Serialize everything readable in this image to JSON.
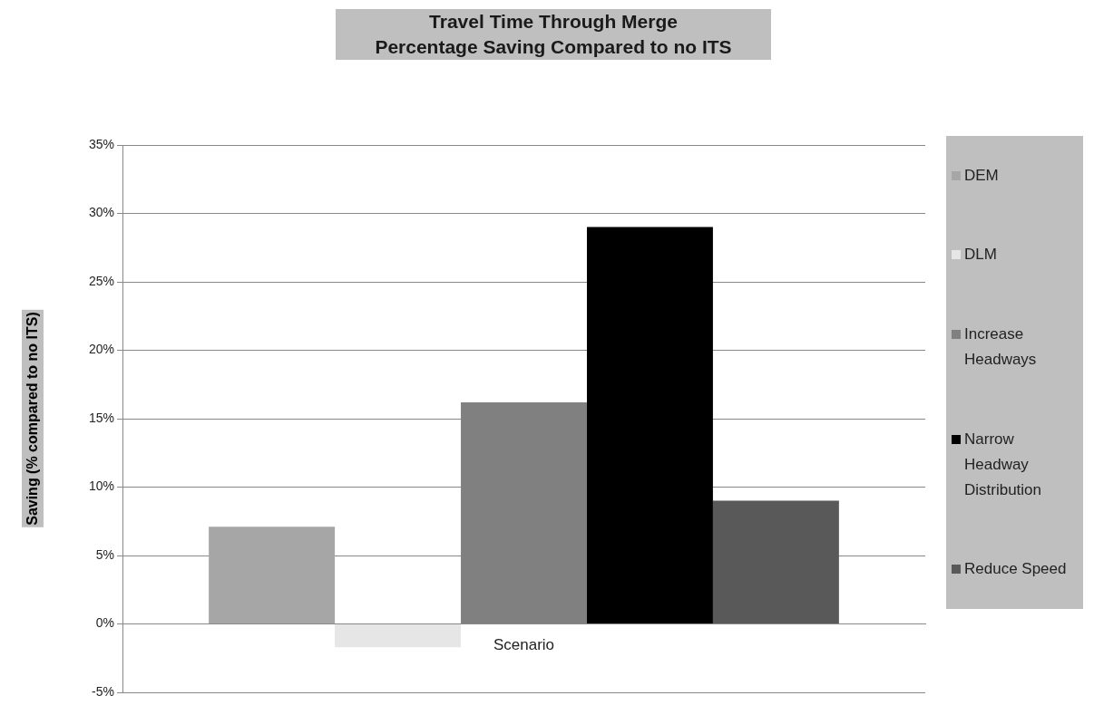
{
  "chart_data": {
    "type": "bar",
    "title": "Travel Time Through Merge",
    "subtitle": "Percentage Saving Compared to no ITS",
    "ylabel": "Saving (% compared to no ITS)",
    "categories": [
      "Scenario"
    ],
    "series": [
      {
        "name": "DEM",
        "color": "#a6a6a6",
        "values": [
          7.1
        ]
      },
      {
        "name": "DLM",
        "color": "#e6e6e6",
        "values": [
          -1.7
        ]
      },
      {
        "name": "Increase Headways",
        "color": "#808080",
        "values": [
          16.2
        ]
      },
      {
        "name": "Narrow Headway Distribution",
        "color": "#000000",
        "values": [
          29
        ]
      },
      {
        "name": "Reduce Speed",
        "color": "#595959",
        "values": [
          9
        ]
      }
    ],
    "ylim": [
      -5,
      35
    ],
    "yticks": [
      {
        "value": -5,
        "label": "-5%"
      },
      {
        "value": 0,
        "label": "0%"
      },
      {
        "value": 5,
        "label": "5%"
      },
      {
        "value": 10,
        "label": "10%"
      },
      {
        "value": 15,
        "label": "15%"
      },
      {
        "value": 20,
        "label": "20%"
      },
      {
        "value": 25,
        "label": "25%"
      },
      {
        "value": 30,
        "label": "30%"
      },
      {
        "value": 35,
        "label": "35%"
      }
    ],
    "grid": "y",
    "legend": "right"
  }
}
